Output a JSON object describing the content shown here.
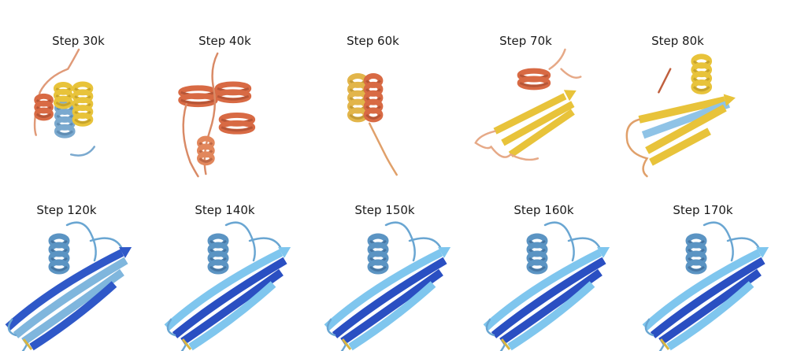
{
  "panels": [
    {
      "label": "Step 30k",
      "style": "early-a",
      "colors": {
        "helix": "#d86a44",
        "sheet": "#e8c33a",
        "alt": "#7aa9cf",
        "coil": "#e09a78"
      }
    },
    {
      "label": "Step 40k",
      "style": "early-b",
      "colors": {
        "helix": "#d86a44",
        "sheet": "#e8c33a",
        "alt": "#e2875c",
        "coil": "#d98a66"
      }
    },
    {
      "label": "Step 60k",
      "style": "early-c",
      "colors": {
        "helix": "#e2b54a",
        "sheet": "#e8c33a",
        "alt": "#d86a44",
        "coil": "#e0a06a"
      }
    },
    {
      "label": "Step 70k",
      "style": "mid-a",
      "colors": {
        "helix": "#d86a44",
        "sheet": "#e8c33a",
        "alt": "#e0a06a",
        "coil": "#e6a987"
      }
    },
    {
      "label": "Step 80k",
      "style": "mid-b",
      "colors": {
        "helix": "#e8c33a",
        "sheet": "#e8c33a",
        "alt": "#8fc3e6",
        "coil": "#e0a06a"
      }
    },
    {
      "label": "Step 120k",
      "style": "final",
      "colors": {
        "helix": "#5b94c3",
        "sheet": "#7fb6dd",
        "alt": "#2f58c8",
        "coil": "#6aa6d2"
      }
    },
    {
      "label": "Step 140k",
      "style": "final",
      "colors": {
        "helix": "#5b94c3",
        "sheet": "#2a4fc2",
        "alt": "#7fc6ee",
        "coil": "#6aa6d2"
      }
    },
    {
      "label": "Step 150k",
      "style": "final",
      "colors": {
        "helix": "#5b94c3",
        "sheet": "#2a4fc2",
        "alt": "#7fc6ee",
        "coil": "#6aa6d2"
      }
    },
    {
      "label": "Step 160k",
      "style": "final",
      "colors": {
        "helix": "#5b94c3",
        "sheet": "#2a4fc2",
        "alt": "#7fc6ee",
        "coil": "#6aa6d2"
      }
    },
    {
      "label": "Step 170k",
      "style": "final",
      "colors": {
        "helix": "#5b94c3",
        "sheet": "#2a4fc2",
        "alt": "#7fc6ee",
        "coil": "#6aa6d2"
      }
    }
  ]
}
